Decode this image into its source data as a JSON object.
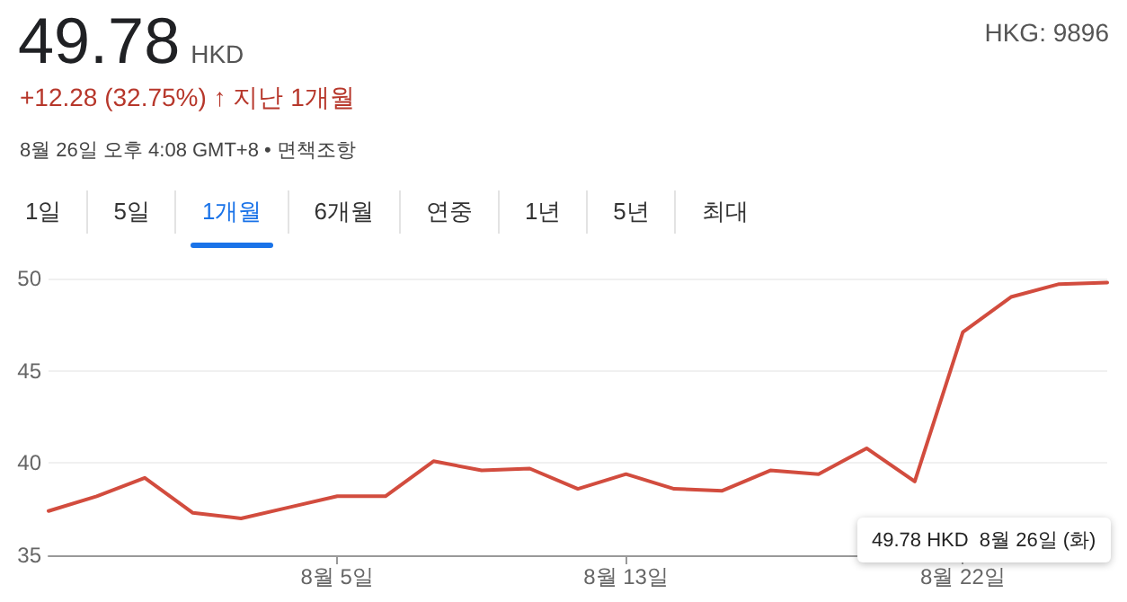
{
  "chart_data": {
    "type": "line",
    "title": "49.78 HKD",
    "subtitle": "+12.28 (32.75%) ↑ 지난 1개월",
    "annotations": [
      "8월 26일 오후 4:08 GMT+8 • 면책조항",
      "HKG: 9896",
      "49.78 HKD  8월 26일 (화)",
      "1일",
      "5일",
      "1개월",
      "6개월",
      "연중",
      "1년",
      "5년",
      "최대"
    ],
    "categories": [
      null,
      null,
      null,
      null,
      null,
      null,
      "8월 5일",
      null,
      null,
      null,
      null,
      null,
      "8월 13일",
      null,
      null,
      null,
      null,
      null,
      null,
      "8월 22일",
      null,
      null,
      null
    ],
    "series": [
      {
        "color": "#d24c3e",
        "values": [
          37.4,
          38.2,
          39.2,
          37.3,
          37.0,
          37.6,
          38.2,
          38.2,
          40.1,
          39.6,
          39.7,
          38.6,
          39.4,
          38.6,
          38.5,
          39.6,
          39.4,
          40.8,
          39.0,
          47.1,
          49.0,
          49.7,
          49.78
        ]
      }
    ],
    "ylim": [
      35,
      50
    ],
    "yticks": [
      35,
      40,
      45,
      50
    ],
    "grid": "y",
    "marker": "none",
    "line_style": "solid"
  }
}
